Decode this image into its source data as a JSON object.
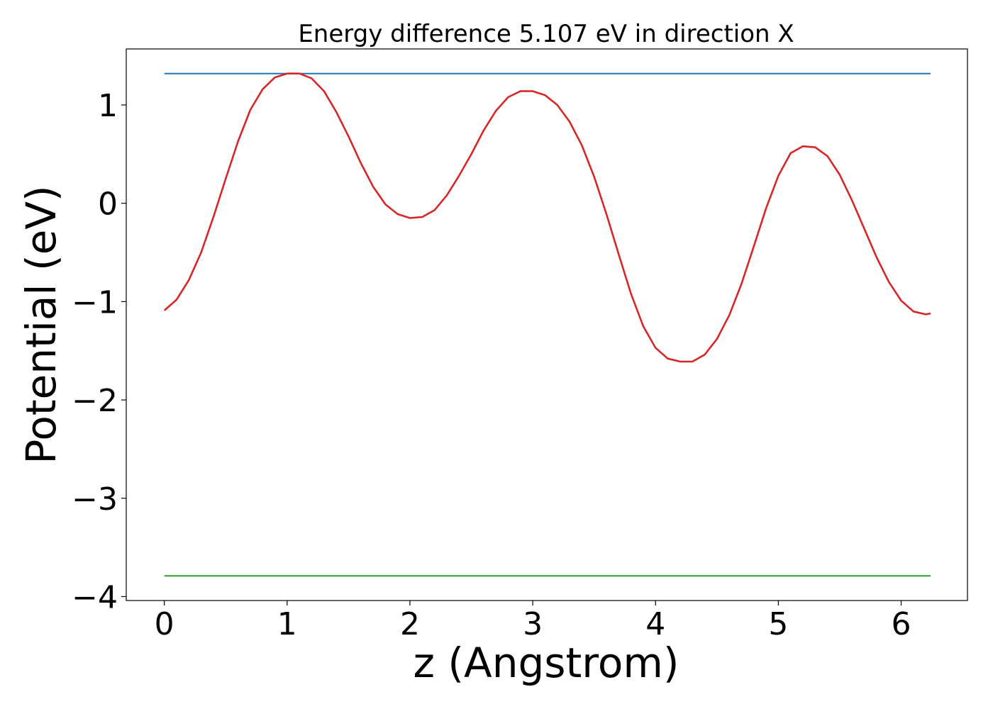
{
  "chart_data": {
    "type": "line",
    "title": "Energy difference 5.107 eV in direction X",
    "xlabel": "z (Angstrom)",
    "ylabel": "Potential (eV)",
    "xlim": [
      -0.31,
      6.54
    ],
    "ylim": [
      -4.04,
      1.57
    ],
    "xticks": [
      0,
      1,
      2,
      3,
      4,
      5,
      6
    ],
    "yticks": [
      -4,
      -3,
      -2,
      -1,
      0,
      1
    ],
    "xtick_labels": [
      "0",
      "1",
      "2",
      "3",
      "4",
      "5",
      "6"
    ],
    "ytick_labels": [
      "−4",
      "−3",
      "−2",
      "−1",
      "0",
      "1"
    ],
    "grid": false,
    "series": [
      {
        "color": "#1f77b4",
        "x": [
          0,
          6.24
        ],
        "y": [
          1.32,
          1.32
        ]
      },
      {
        "color": "#2ca02c",
        "x": [
          0,
          6.24
        ],
        "y": [
          -3.79,
          -3.79
        ]
      },
      {
        "color": "#d62728",
        "x": [
          0,
          0.1,
          0.2,
          0.3,
          0.4,
          0.5,
          0.6,
          0.7,
          0.8,
          0.9,
          1.0,
          1.1,
          1.2,
          1.3,
          1.4,
          1.5,
          1.6,
          1.7,
          1.8,
          1.9,
          2.0,
          2.1,
          2.2,
          2.3,
          2.4,
          2.5,
          2.6,
          2.7,
          2.8,
          2.9,
          3.0,
          3.1,
          3.2,
          3.3,
          3.4,
          3.5,
          3.6,
          3.7,
          3.8,
          3.9,
          4.0,
          4.1,
          4.2,
          4.3,
          4.4,
          4.5,
          4.6,
          4.7,
          4.8,
          4.9,
          5.0,
          5.1,
          5.2,
          5.3,
          5.4,
          5.5,
          5.6,
          5.7,
          5.8,
          5.9,
          6.0,
          6.1,
          6.2,
          6.24
        ],
        "y": [
          -1.09,
          -0.98,
          -0.78,
          -0.5,
          -0.14,
          0.25,
          0.63,
          0.95,
          1.16,
          1.28,
          1.32,
          1.32,
          1.27,
          1.14,
          0.93,
          0.68,
          0.41,
          0.17,
          -0.01,
          -0.11,
          -0.15,
          -0.14,
          -0.07,
          0.08,
          0.28,
          0.5,
          0.74,
          0.94,
          1.08,
          1.14,
          1.14,
          1.1,
          1.0,
          0.83,
          0.59,
          0.27,
          -0.11,
          -0.52,
          -0.92,
          -1.25,
          -1.47,
          -1.58,
          -1.61,
          -1.61,
          -1.54,
          -1.38,
          -1.14,
          -0.82,
          -0.44,
          -0.05,
          0.28,
          0.51,
          0.58,
          0.57,
          0.48,
          0.29,
          0.03,
          -0.26,
          -0.55,
          -0.8,
          -0.99,
          -1.1,
          -1.13,
          -1.12
        ]
      }
    ]
  }
}
